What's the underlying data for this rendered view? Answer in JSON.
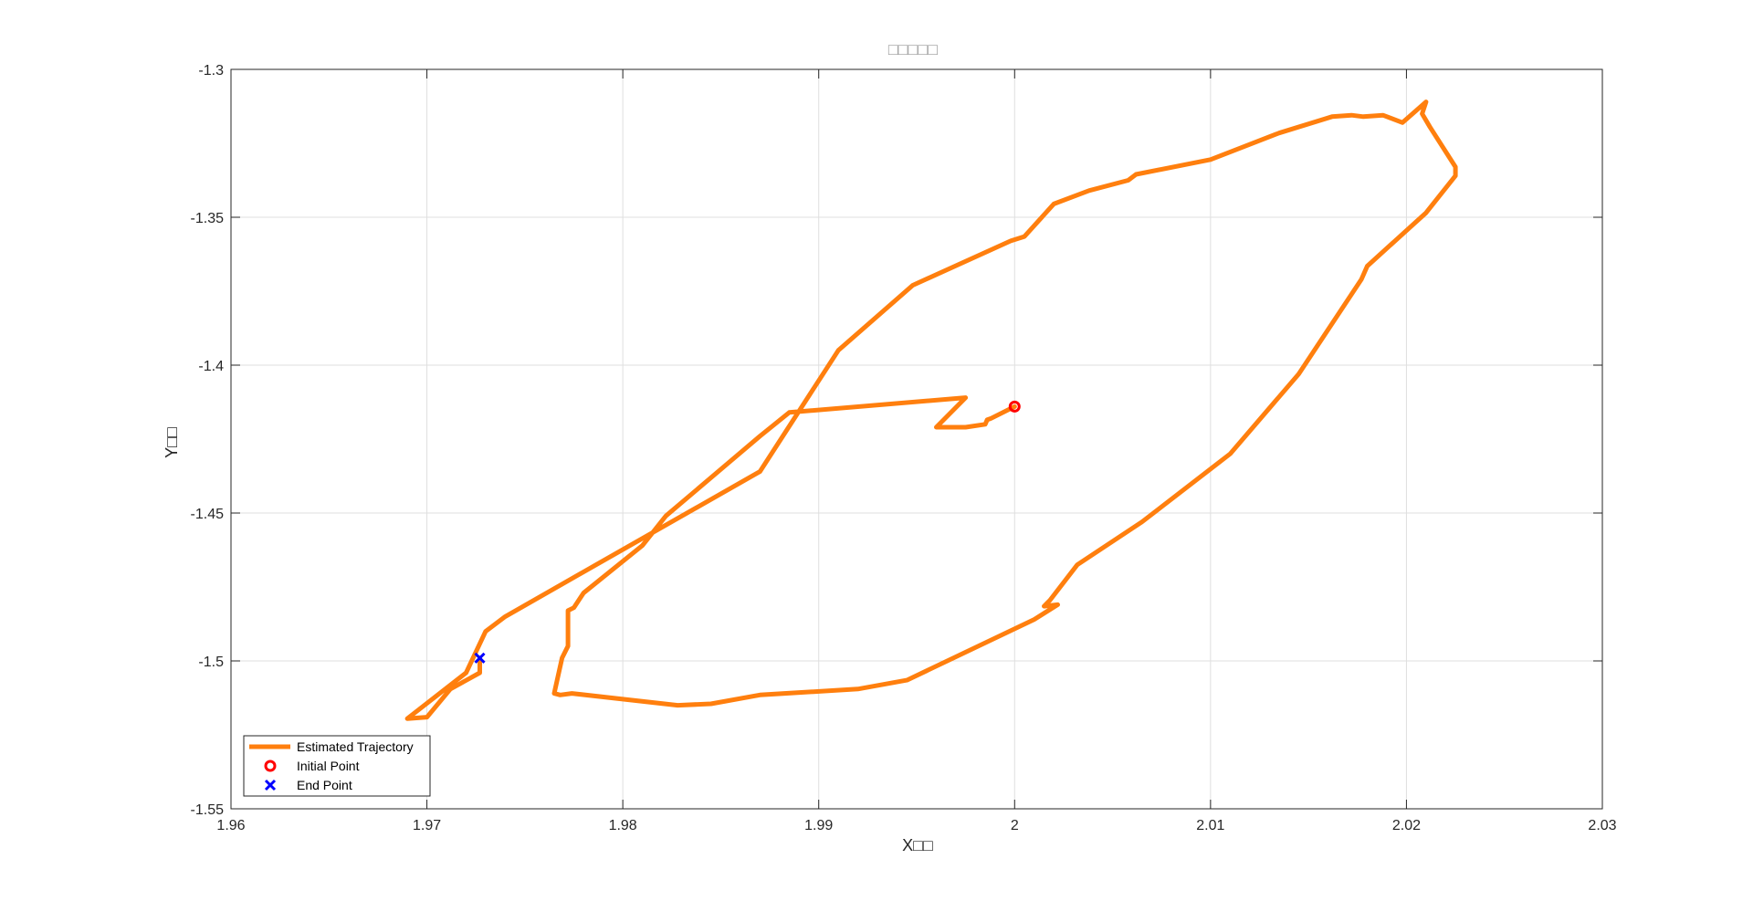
{
  "chart_data": {
    "type": "line",
    "title": "□□□□□",
    "xlabel": "X□□",
    "ylabel": "Y□□",
    "xlim": [
      1.96,
      2.03
    ],
    "ylim": [
      -1.55,
      -1.3
    ],
    "xticks": [
      1.96,
      1.97,
      1.98,
      1.99,
      2.0,
      2.01,
      2.02,
      2.03
    ],
    "xtick_labels": [
      "1.96",
      "1.97",
      "1.98",
      "1.99",
      "2",
      "2.01",
      "2.02",
      "2.03"
    ],
    "yticks": [
      -1.3,
      -1.35,
      -1.4,
      -1.45,
      -1.5,
      -1.55
    ],
    "ytick_labels": [
      "-1.3",
      "-1.35",
      "-1.4",
      "-1.45",
      "-1.5",
      "-1.55"
    ],
    "grid": true,
    "legend_position": "bottom-left",
    "series": [
      {
        "name": "Estimated Trajectory",
        "color": "#ff7f0e",
        "x": [
          2.0,
          1.9988,
          1.9986,
          1.9985,
          1.9975,
          1.996,
          1.9975,
          1.9885,
          1.987,
          1.9822,
          1.981,
          1.978,
          1.9775,
          1.9772,
          1.9772,
          1.9769,
          1.9765,
          1.9768,
          1.9774,
          1.9828,
          1.9845,
          1.987,
          1.992,
          1.9945,
          2.001,
          2.0022,
          2.0015,
          2.0018,
          2.0032,
          2.0065,
          2.011,
          2.0145,
          2.0177,
          2.018,
          2.021,
          2.0225,
          2.0225,
          2.0212,
          2.0208,
          2.021,
          2.0198,
          2.0188,
          2.0178,
          2.0172,
          2.0162,
          2.0135,
          2.01,
          2.0062,
          2.0058,
          2.0038,
          2.002,
          2.0005,
          1.9998,
          1.9948,
          1.991,
          1.987,
          1.9785,
          1.974,
          1.973,
          1.972,
          1.969,
          1.97,
          1.9712,
          1.9727,
          1.9727
        ],
        "y": [
          -1.414,
          -1.418,
          -1.4185,
          -1.42,
          -1.421,
          -1.421,
          -1.411,
          -1.416,
          -1.424,
          -1.451,
          -1.461,
          -1.477,
          -1.482,
          -1.483,
          -1.495,
          -1.499,
          -1.511,
          -1.5115,
          -1.511,
          -1.515,
          -1.5145,
          -1.5115,
          -1.5095,
          -1.5065,
          -1.486,
          -1.481,
          -1.4815,
          -1.4795,
          -1.4675,
          -1.453,
          -1.43,
          -1.403,
          -1.371,
          -1.3665,
          -1.3485,
          -1.336,
          -1.333,
          -1.3195,
          -1.315,
          -1.311,
          -1.318,
          -1.3155,
          -1.316,
          -1.3155,
          -1.316,
          -1.3215,
          -1.3305,
          -1.3355,
          -1.3375,
          -1.341,
          -1.3455,
          -1.3565,
          -1.358,
          -1.373,
          -1.395,
          -1.436,
          -1.468,
          -1.485,
          -1.49,
          -1.504,
          -1.5195,
          -1.519,
          -1.5095,
          -1.504,
          -1.499
        ]
      },
      {
        "name": "Initial Point",
        "color": "#ff0000",
        "marker": "circle",
        "x": [
          2.0
        ],
        "y": [
          -1.414
        ]
      },
      {
        "name": "End Point",
        "color": "#0000ff",
        "marker": "x",
        "x": [
          1.9727
        ],
        "y": [
          -1.499
        ]
      }
    ]
  }
}
